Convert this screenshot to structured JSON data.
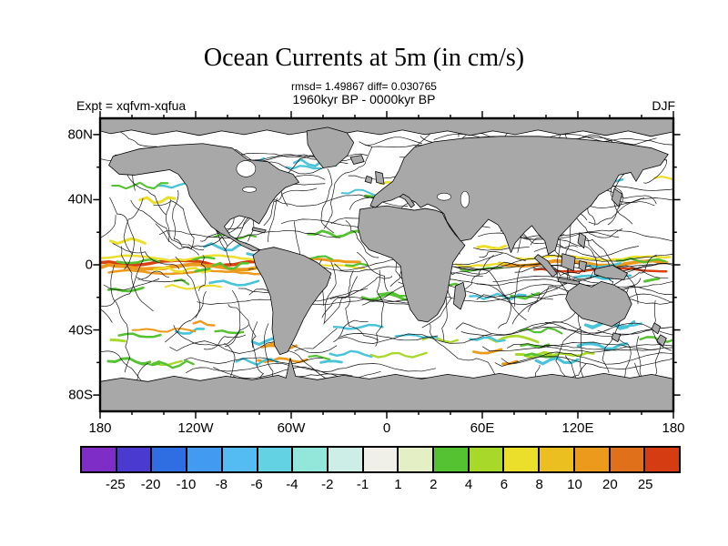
{
  "title": "Ocean Currents at 5m (in cm/s)",
  "stats_line": "rmsd= 1.49867 diff= 0.030765",
  "period_line": "1960kyr BP - 0000kyr BP",
  "expt_label": "Expt = xqfvm-xqfua",
  "season_label": "DJF",
  "chart_data": {
    "type": "heatmap",
    "title": "Ocean Currents at 5m (in cm/s)",
    "subtitle": "1960kyr BP - 0000kyr BP",
    "stats": {
      "rmsd": 1.49867,
      "diff": 0.030765
    },
    "experiment": "xqfvm-xqfua",
    "season": "DJF",
    "units": "cm/s",
    "projection": "equirectangular world map, longitude 180W-180E centered on 0, latitude 90S-90N",
    "x_axis": {
      "ticks": [
        "180",
        "120W",
        "60W",
        "0",
        "60E",
        "120E",
        "180"
      ],
      "range_deg": [
        -180,
        180
      ]
    },
    "y_axis": {
      "ticks": [
        "80N",
        "40N",
        "0",
        "40S",
        "80S"
      ],
      "range_deg": [
        -90,
        90
      ]
    },
    "colorbar": {
      "levels": [
        -25,
        -20,
        -10,
        -8,
        -6,
        -4,
        -2,
        -1,
        1,
        2,
        4,
        6,
        8,
        10,
        20,
        25
      ],
      "tick_labels": [
        "-25",
        "-20",
        "-10",
        "-8",
        "-6",
        "-4",
        "-2",
        "-1",
        "1",
        "2",
        "4",
        "6",
        "8",
        "10",
        "20",
        "25"
      ],
      "colors": [
        "#7e2ec6",
        "#4b3ad0",
        "#2f6ee2",
        "#429bf0",
        "#54bcf2",
        "#63d2e2",
        "#93e6da",
        "#cdeee6",
        "#f0f0e9",
        "#e4efc6",
        "#55c231",
        "#a8d82a",
        "#ecdf2b",
        "#ecbf20",
        "#ec9a1c",
        "#e0701a",
        "#d63c12"
      ]
    },
    "map_colors": {
      "land": "#a8a8a8",
      "ocean": "#ffffff",
      "streamlines": "#000000"
    },
    "description": "Difference in ocean currents at 5 m depth (cm/s) between experiments xqfvm and xqfua for DJF; streamline field over a world map with strongest anomalies along the equatorial oceans."
  }
}
